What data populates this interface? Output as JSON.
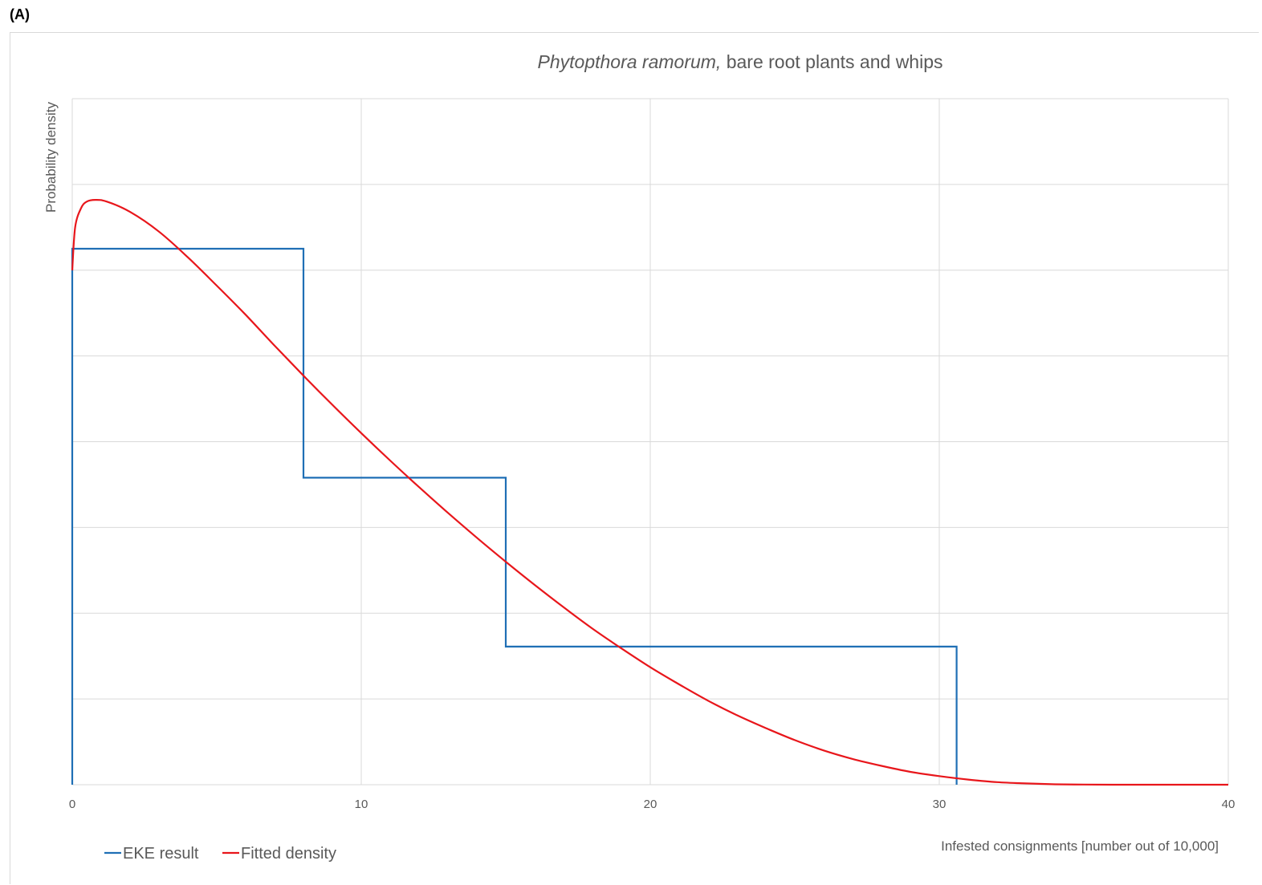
{
  "panel_label": "(A)",
  "chart_data": {
    "type": "line",
    "title_italic": "Phytopthora ramorum,",
    "title_rest": " bare root plants and whips",
    "xlabel": "Infested consignments [number out of 10,000]",
    "ylabel": "Probability density",
    "xlim": [
      0,
      40
    ],
    "ylim": [
      0,
      8
    ],
    "x_ticks": [
      0,
      10,
      20,
      30,
      40
    ],
    "y_gridlines": [
      0,
      1,
      2,
      3,
      4,
      5,
      6,
      7,
      8
    ],
    "y_tick_labels_shown": false,
    "grid": true,
    "legend_position": "bottom-left",
    "colors": {
      "eke": "#1f6fb5",
      "fitted": "#e8161b",
      "grid": "#d9d9d9",
      "text": "#595959"
    },
    "series": [
      {
        "name": "EKE result",
        "style": "step",
        "x": [
          0,
          0,
          8,
          8,
          15,
          15,
          30.6,
          30.6
        ],
        "y": [
          0,
          6.25,
          6.25,
          3.58,
          3.58,
          1.61,
          1.61,
          0
        ]
      },
      {
        "name": "Fitted density",
        "style": "curve",
        "x": [
          0,
          0.1,
          0.3,
          0.5,
          0.8,
          1.2,
          2,
          3,
          4,
          5,
          6,
          7,
          8,
          9,
          10,
          11,
          12,
          13,
          14,
          15,
          16,
          17,
          18,
          19,
          20,
          21,
          22,
          23,
          24,
          25,
          26,
          27,
          28,
          29,
          30,
          31,
          32,
          33,
          34,
          35,
          36,
          37,
          38,
          39,
          40
        ],
        "y": [
          6.0,
          6.5,
          6.72,
          6.8,
          6.82,
          6.8,
          6.68,
          6.45,
          6.15,
          5.82,
          5.48,
          5.12,
          4.77,
          4.43,
          4.1,
          3.78,
          3.47,
          3.17,
          2.88,
          2.6,
          2.33,
          2.07,
          1.82,
          1.59,
          1.37,
          1.17,
          0.98,
          0.81,
          0.66,
          0.52,
          0.4,
          0.3,
          0.22,
          0.15,
          0.1,
          0.06,
          0.03,
          0.015,
          0.005,
          0.002,
          0.0,
          0.0,
          0.0,
          0.0,
          0.0
        ]
      }
    ]
  }
}
